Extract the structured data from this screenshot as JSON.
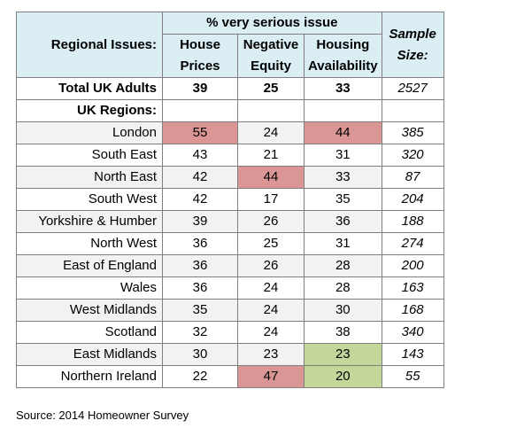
{
  "header": {
    "group_label": "% very serious issue",
    "row_header": "Regional Issues:",
    "columns": [
      "House Prices",
      "Negative Equity",
      "Housing Availability"
    ],
    "sample_header": "Sample Size:"
  },
  "total_row": {
    "label": "Total UK Adults",
    "values": [
      "39",
      "25",
      "33"
    ],
    "sample": "2527"
  },
  "regions_label": "UK Regions:",
  "rows": [
    {
      "label": "London",
      "values": [
        "55",
        "24",
        "44"
      ],
      "sample": "385",
      "highlight": [
        "red",
        "",
        "red"
      ]
    },
    {
      "label": "South East",
      "values": [
        "43",
        "21",
        "31"
      ],
      "sample": "320",
      "highlight": [
        "",
        "",
        ""
      ]
    },
    {
      "label": "North East",
      "values": [
        "42",
        "44",
        "33"
      ],
      "sample": "87",
      "highlight": [
        "",
        "red",
        ""
      ]
    },
    {
      "label": "South West",
      "values": [
        "42",
        "17",
        "35"
      ],
      "sample": "204",
      "highlight": [
        "",
        "",
        ""
      ]
    },
    {
      "label": "Yorkshire & Humber",
      "values": [
        "39",
        "26",
        "36"
      ],
      "sample": "188",
      "highlight": [
        "",
        "",
        ""
      ]
    },
    {
      "label": "North West",
      "values": [
        "36",
        "25",
        "31"
      ],
      "sample": "274",
      "highlight": [
        "",
        "",
        ""
      ]
    },
    {
      "label": "East of England",
      "values": [
        "36",
        "26",
        "28"
      ],
      "sample": "200",
      "highlight": [
        "",
        "",
        ""
      ]
    },
    {
      "label": "Wales",
      "values": [
        "36",
        "24",
        "28"
      ],
      "sample": "163",
      "highlight": [
        "",
        "",
        ""
      ]
    },
    {
      "label": "West Midlands",
      "values": [
        "35",
        "24",
        "30"
      ],
      "sample": "168",
      "highlight": [
        "",
        "",
        ""
      ]
    },
    {
      "label": "Scotland",
      "values": [
        "32",
        "24",
        "38"
      ],
      "sample": "340",
      "highlight": [
        "",
        "",
        ""
      ]
    },
    {
      "label": "East Midlands",
      "values": [
        "30",
        "23",
        "23"
      ],
      "sample": "143",
      "highlight": [
        "",
        "",
        "green"
      ]
    },
    {
      "label": "Northern Ireland",
      "values": [
        "22",
        "47",
        "20"
      ],
      "sample": "55",
      "highlight": [
        "",
        "red",
        "green"
      ]
    }
  ],
  "colors": {
    "header_bg": "#daeef3",
    "high": "#da9694",
    "low": "#c4d79b",
    "row_shade": "#f2f2f2"
  },
  "source": "Source: 2014 Homeowner Survey"
}
